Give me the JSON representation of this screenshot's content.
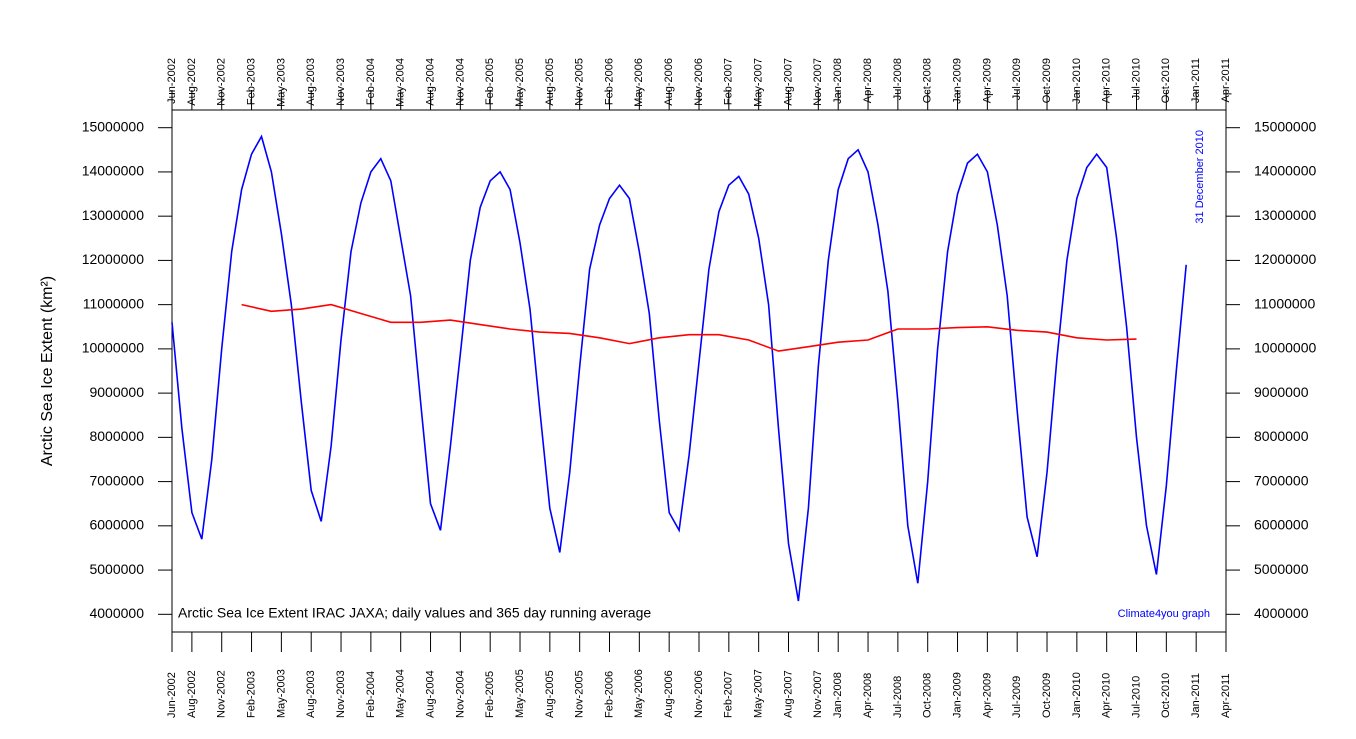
{
  "chart_data": {
    "type": "line",
    "y_label": "Arctic Sea Ice Extent (km²)",
    "annotation": "Arctic Sea Ice Extent IRAC JAXA; daily values and 365 day running average",
    "credit": "Climate4you graph",
    "date_note": "31 December 2010",
    "xlim": [
      "2002-06",
      "2011-04"
    ],
    "ylim": [
      3600000,
      15400000
    ],
    "yticks": [
      4000000,
      5000000,
      6000000,
      7000000,
      8000000,
      9000000,
      10000000,
      11000000,
      12000000,
      13000000,
      14000000,
      15000000
    ],
    "xticks": [
      {
        "value": "2002-06",
        "label": "Jun-2002"
      },
      {
        "value": "2002-08",
        "label": "Aug-2002"
      },
      {
        "value": "2002-11",
        "label": "Nov-2002"
      },
      {
        "value": "2003-02",
        "label": "Feb-2003"
      },
      {
        "value": "2003-05",
        "label": "May-2003"
      },
      {
        "value": "2003-08",
        "label": "Aug-2003"
      },
      {
        "value": "2003-11",
        "label": "Nov-2003"
      },
      {
        "value": "2004-02",
        "label": "Feb-2004"
      },
      {
        "value": "2004-05",
        "label": "May-2004"
      },
      {
        "value": "2004-08",
        "label": "Aug-2004"
      },
      {
        "value": "2004-11",
        "label": "Nov-2004"
      },
      {
        "value": "2005-02",
        "label": "Feb-2005"
      },
      {
        "value": "2005-05",
        "label": "May-2005"
      },
      {
        "value": "2005-08",
        "label": "Aug-2005"
      },
      {
        "value": "2005-11",
        "label": "Nov-2005"
      },
      {
        "value": "2006-02",
        "label": "Feb-2006"
      },
      {
        "value": "2006-05",
        "label": "May-2006"
      },
      {
        "value": "2006-08",
        "label": "Aug-2006"
      },
      {
        "value": "2006-11",
        "label": "Nov-2006"
      },
      {
        "value": "2007-02",
        "label": "Feb-2007"
      },
      {
        "value": "2007-05",
        "label": "May-2007"
      },
      {
        "value": "2007-08",
        "label": "Aug-2007"
      },
      {
        "value": "2007-11",
        "label": "Nov-2007"
      },
      {
        "value": "2008-01",
        "label": "Jan-2008"
      },
      {
        "value": "2008-04",
        "label": "Apr-2008"
      },
      {
        "value": "2008-07",
        "label": "Jul-2008"
      },
      {
        "value": "2008-10",
        "label": "Oct-2008"
      },
      {
        "value": "2009-01",
        "label": "Jan-2009"
      },
      {
        "value": "2009-04",
        "label": "Apr-2009"
      },
      {
        "value": "2009-07",
        "label": "Jul-2009"
      },
      {
        "value": "2009-10",
        "label": "Oct-2009"
      },
      {
        "value": "2010-01",
        "label": "Jan-2010"
      },
      {
        "value": "2010-04",
        "label": "Apr-2010"
      },
      {
        "value": "2010-07",
        "label": "Jul-2010"
      },
      {
        "value": "2010-10",
        "label": "Oct-2010"
      },
      {
        "value": "2011-01",
        "label": "Jan-2011"
      },
      {
        "value": "2011-04",
        "label": "Apr-2011"
      }
    ],
    "series": [
      {
        "color": "#0000ff",
        "x": [
          "2002-06",
          "2002-07",
          "2002-08",
          "2002-09",
          "2002-10",
          "2002-11",
          "2002-12",
          "2003-01",
          "2003-02",
          "2003-03",
          "2003-04",
          "2003-05",
          "2003-06",
          "2003-07",
          "2003-08",
          "2003-09",
          "2003-10",
          "2003-11",
          "2003-12",
          "2004-01",
          "2004-02",
          "2004-03",
          "2004-04",
          "2004-05",
          "2004-06",
          "2004-07",
          "2004-08",
          "2004-09",
          "2004-10",
          "2004-11",
          "2004-12",
          "2005-01",
          "2005-02",
          "2005-03",
          "2005-04",
          "2005-05",
          "2005-06",
          "2005-07",
          "2005-08",
          "2005-09",
          "2005-10",
          "2005-11",
          "2005-12",
          "2006-01",
          "2006-02",
          "2006-03",
          "2006-04",
          "2006-05",
          "2006-06",
          "2006-07",
          "2006-08",
          "2006-09",
          "2006-10",
          "2006-11",
          "2006-12",
          "2007-01",
          "2007-02",
          "2007-03",
          "2007-04",
          "2007-05",
          "2007-06",
          "2007-07",
          "2007-08",
          "2007-09",
          "2007-10",
          "2007-11",
          "2007-12",
          "2008-01",
          "2008-02",
          "2008-03",
          "2008-04",
          "2008-05",
          "2008-06",
          "2008-07",
          "2008-08",
          "2008-09",
          "2008-10",
          "2008-11",
          "2008-12",
          "2009-01",
          "2009-02",
          "2009-03",
          "2009-04",
          "2009-05",
          "2009-06",
          "2009-07",
          "2009-08",
          "2009-09",
          "2009-10",
          "2009-11",
          "2009-12",
          "2010-01",
          "2010-02",
          "2010-03",
          "2010-04",
          "2010-05",
          "2010-06",
          "2010-07",
          "2010-08",
          "2010-09",
          "2010-10",
          "2010-11",
          "2010-12"
        ],
        "values": [
          10600000,
          8200000,
          6300000,
          5700000,
          7500000,
          10000000,
          12200000,
          13600000,
          14400000,
          14800000,
          14000000,
          12600000,
          11000000,
          8800000,
          6800000,
          6100000,
          7800000,
          10200000,
          12200000,
          13300000,
          14000000,
          14300000,
          13800000,
          12500000,
          11200000,
          8800000,
          6500000,
          5900000,
          7800000,
          9900000,
          12000000,
          13200000,
          13800000,
          14000000,
          13600000,
          12400000,
          10900000,
          8600000,
          6400000,
          5400000,
          7200000,
          9600000,
          11800000,
          12800000,
          13400000,
          13700000,
          13400000,
          12200000,
          10800000,
          8400000,
          6300000,
          5900000,
          7600000,
          9700000,
          11800000,
          13100000,
          13700000,
          13900000,
          13500000,
          12500000,
          11000000,
          8200000,
          5600000,
          4300000,
          6400000,
          9600000,
          12000000,
          13600000,
          14300000,
          14500000,
          14000000,
          12800000,
          11300000,
          8800000,
          6000000,
          4700000,
          7000000,
          10000000,
          12200000,
          13500000,
          14200000,
          14400000,
          14000000,
          12800000,
          11200000,
          8600000,
          6200000,
          5300000,
          7200000,
          9800000,
          12000000,
          13400000,
          14100000,
          14400000,
          14100000,
          12500000,
          10500000,
          8000000,
          6000000,
          4900000,
          6900000,
          9500000,
          11900000
        ]
      },
      {
        "color": "#ff0000",
        "x": [
          "2003-01",
          "2003-04",
          "2003-07",
          "2003-10",
          "2004-01",
          "2004-04",
          "2004-07",
          "2004-10",
          "2005-01",
          "2005-04",
          "2005-07",
          "2005-10",
          "2006-01",
          "2006-04",
          "2006-07",
          "2006-10",
          "2007-01",
          "2007-04",
          "2007-07",
          "2007-10",
          "2008-01",
          "2008-04",
          "2008-07",
          "2008-10",
          "2009-01",
          "2009-04",
          "2009-07",
          "2009-10",
          "2010-01",
          "2010-04",
          "2010-07"
        ],
        "values": [
          11000000,
          10850000,
          10900000,
          11000000,
          10800000,
          10600000,
          10600000,
          10650000,
          10550000,
          10450000,
          10380000,
          10350000,
          10250000,
          10120000,
          10250000,
          10320000,
          10320000,
          10200000,
          9950000,
          10050000,
          10150000,
          10200000,
          10450000,
          10450000,
          10480000,
          10500000,
          10420000,
          10380000,
          10250000,
          10200000,
          10220000
        ]
      }
    ]
  }
}
